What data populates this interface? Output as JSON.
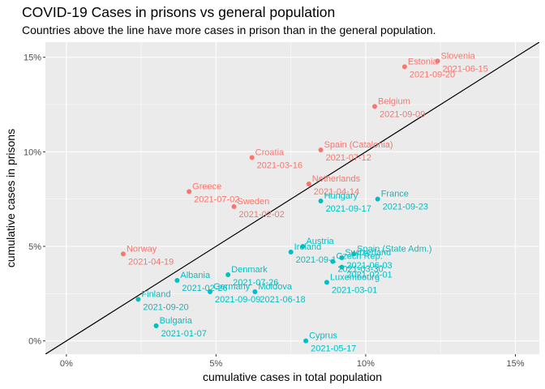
{
  "chart_data": {
    "type": "scatter",
    "title": "COVID-19 Cases in prisons vs general population",
    "subtitle": "Countries above the line have more cases in prison than in the general population.",
    "xlabel": "cumulative cases in total population",
    "ylabel": "cumulative cases in prisons",
    "xlim": [
      -0.7,
      15.8
    ],
    "ylim": [
      -0.7,
      15.8
    ],
    "x_ticks": [
      0,
      5,
      10,
      15
    ],
    "y_ticks": [
      0,
      5,
      10,
      15
    ],
    "x_tick_labels": [
      "0%",
      "5%",
      "10%",
      "15%"
    ],
    "y_tick_labels": [
      "0%",
      "5%",
      "10%",
      "15%"
    ],
    "reference_line": {
      "slope": 1,
      "intercept": 0
    },
    "grid": true,
    "legend": "none",
    "colors": {
      "above": "#F8766D",
      "below": "#00BFC4",
      "panel": "#EBEBEB",
      "grid": "#FFFFFF",
      "line": "#000000"
    },
    "points": [
      {
        "country": "Slovenia",
        "date": "2021-06-15",
        "x": 12.4,
        "y": 14.8,
        "group": "above"
      },
      {
        "country": "Estonia",
        "date": "2021-09-20",
        "x": 11.3,
        "y": 14.5,
        "group": "above"
      },
      {
        "country": "Belgium",
        "date": "2021-09-09",
        "x": 10.3,
        "y": 12.4,
        "group": "above"
      },
      {
        "country": "Croatia",
        "date": "2021-03-16",
        "x": 6.2,
        "y": 9.7,
        "group": "above"
      },
      {
        "country": "Spain (Catalonia)",
        "date": "2021-07-12",
        "x": 8.5,
        "y": 10.1,
        "group": "above"
      },
      {
        "country": "Netherlands",
        "date": "2021-04-14",
        "x": 8.1,
        "y": 8.3,
        "group": "above"
      },
      {
        "country": "Greece",
        "date": "2021-07-02",
        "x": 4.1,
        "y": 7.9,
        "group": "above"
      },
      {
        "country": "Sweden",
        "date": "2021-02-02",
        "x": 5.6,
        "y": 7.1,
        "group": "above"
      },
      {
        "country": "Norway",
        "date": "2021-04-19",
        "x": 1.9,
        "y": 4.6,
        "group": "above"
      },
      {
        "country": "Hungary",
        "date": "2021-09-17",
        "x": 8.5,
        "y": 7.4,
        "group": "below"
      },
      {
        "country": "France",
        "date": "2021-09-23",
        "x": 10.4,
        "y": 7.5,
        "group": "below"
      },
      {
        "country": "Austria",
        "date": "",
        "x": 7.9,
        "y": 5.0,
        "group": "below"
      },
      {
        "country": "Ireland",
        "date": "2021-09-1",
        "x": 7.5,
        "y": 4.7,
        "group": "below"
      },
      {
        "country": "Spain (State Adm.)",
        "date": "",
        "x": 9.6,
        "y": 4.6,
        "group": "below"
      },
      {
        "country": "Switzerland",
        "date": "2021-06-03",
        "x": 9.2,
        "y": 4.4,
        "group": "below"
      },
      {
        "country": "Czech Rep.",
        "date": "2021-03-30",
        "x": 8.9,
        "y": 4.2,
        "group": "below"
      },
      {
        "country": "",
        "date": "2021-02-01",
        "x": 9.2,
        "y": 3.9,
        "group": "below"
      },
      {
        "country": "Luxembourg",
        "date": "2021-03-01",
        "x": 8.7,
        "y": 3.1,
        "group": "below"
      },
      {
        "country": "Denmark",
        "date": "2021-07-26",
        "x": 5.4,
        "y": 3.5,
        "group": "below"
      },
      {
        "country": "Albania",
        "date": "2021-02-26",
        "x": 3.7,
        "y": 3.2,
        "group": "below"
      },
      {
        "country": "Germany",
        "date": "2021-09-09",
        "x": 4.8,
        "y": 2.6,
        "group": "below"
      },
      {
        "country": "Moldova",
        "date": "2021-06-18",
        "x": 6.3,
        "y": 2.6,
        "group": "below"
      },
      {
        "country": "Finland",
        "date": "2021-09-20",
        "x": 2.4,
        "y": 2.2,
        "group": "below"
      },
      {
        "country": "Bulgaria",
        "date": "2021-01-07",
        "x": 3.0,
        "y": 0.8,
        "group": "below"
      },
      {
        "country": "Cyprus",
        "date": "2021-05-17",
        "x": 8.0,
        "y": 0.0,
        "group": "below"
      }
    ]
  }
}
